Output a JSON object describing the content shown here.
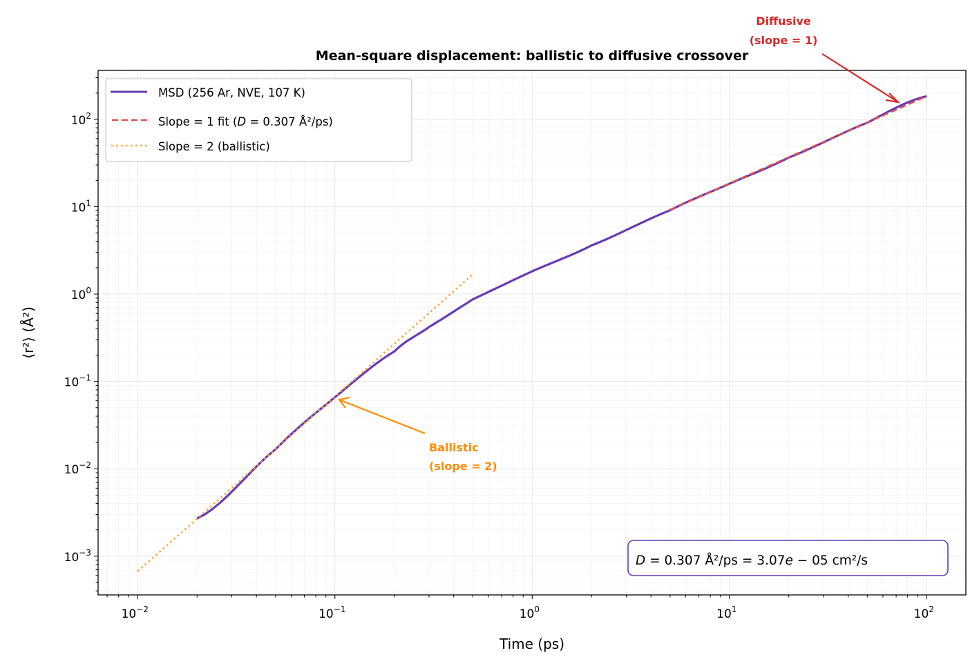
{
  "chart_data": {
    "type": "line",
    "title": "Mean-square displacement: ballistic to diffusive crossover",
    "xlabel": "Time (ps)",
    "ylabel": "⟨r²⟩ (Å²)",
    "xscale": "log",
    "yscale": "log",
    "xlim": [
      0.0063,
      158
    ],
    "ylim": [
      0.00036,
      363
    ],
    "grid": "on (major and minor)",
    "legend_placement": "top-left",
    "x_ticks": [
      {
        "value": 0.01,
        "label_base": "10",
        "label_exp": "−2"
      },
      {
        "value": 0.1,
        "label_base": "10",
        "label_exp": "−1"
      },
      {
        "value": 1,
        "label_base": "10",
        "label_exp": "0"
      },
      {
        "value": 10,
        "label_base": "10",
        "label_exp": "1"
      },
      {
        "value": 100,
        "label_base": "10",
        "label_exp": "2"
      }
    ],
    "y_ticks": [
      {
        "value": 0.001,
        "label_base": "10",
        "label_exp": "−3"
      },
      {
        "value": 0.01,
        "label_base": "10",
        "label_exp": "−2"
      },
      {
        "value": 0.1,
        "label_base": "10",
        "label_exp": "−1"
      },
      {
        "value": 1,
        "label_base": "10",
        "label_exp": "0"
      },
      {
        "value": 10,
        "label_base": "10",
        "label_exp": "1"
      },
      {
        "value": 100,
        "label_base": "10",
        "label_exp": "2"
      }
    ],
    "series": [
      {
        "name": "MSD (256 Ar, NVE, 107 K)",
        "style": "solid",
        "color": "#673ab7",
        "x": [
          0.02,
          0.05,
          0.1,
          0.2,
          0.3,
          0.5,
          1,
          2,
          5,
          10,
          20,
          50,
          100
        ],
        "y": [
          0.0027,
          0.0167,
          0.066,
          0.22,
          0.42,
          0.87,
          1.82,
          3.6,
          9.1,
          18.3,
          36.5,
          91.5,
          184
        ]
      },
      {
        "name_prefix": "Slope = 1 fit (",
        "name_var": "D",
        "name_suffix": " = 0.307 Å²/ps)",
        "style": "dashed",
        "color": "#e05050",
        "x": [
          5,
          100
        ],
        "y": [
          9.21,
          184.2
        ]
      },
      {
        "name": "Slope = 2 (ballistic)",
        "style": "dotted",
        "color": "#ffa030",
        "x": [
          0.01,
          0.5
        ],
        "y": [
          0.00067,
          1.68
        ]
      }
    ],
    "annotations": [
      {
        "lines": [
          "Diffusive",
          "(slope = 1)"
        ],
        "color": "#d62728",
        "target_x": 75,
        "target_y": 140
      },
      {
        "lines": [
          "Ballistic",
          "(slope = 2)"
        ],
        "color": "#ff8c00",
        "target_x": 0.1,
        "target_y": 0.062
      }
    ],
    "textbox": {
      "var": "D",
      "text": " = 0.307 Å²/ps = 3.07",
      "var2": "e",
      "text2": " − 05 cm²/s",
      "border_color": "#673ab7"
    }
  }
}
